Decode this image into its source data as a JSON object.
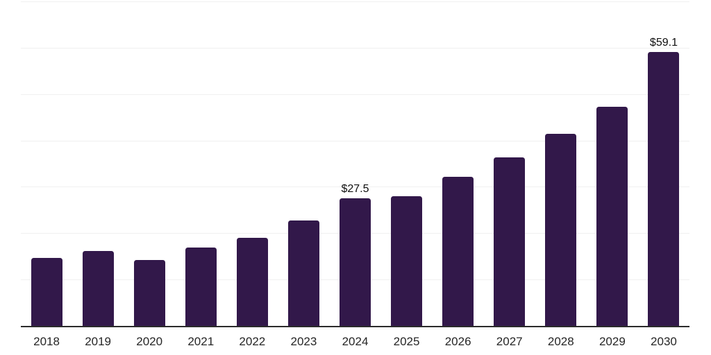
{
  "chart_data": {
    "type": "bar",
    "categories": [
      "2018",
      "2019",
      "2020",
      "2021",
      "2022",
      "2023",
      "2024",
      "2025",
      "2026",
      "2027",
      "2028",
      "2029",
      "2030"
    ],
    "values": [
      14.6,
      16.1,
      14.2,
      16.9,
      19.0,
      22.7,
      27.5,
      28.0,
      32.1,
      36.3,
      41.4,
      47.3,
      59.1
    ],
    "annotations": [
      {
        "category": "2024",
        "label": "$27.5"
      },
      {
        "category": "2030",
        "label": "$59.1"
      }
    ],
    "title": "",
    "xlabel": "",
    "ylabel": "",
    "ylim": [
      0,
      70
    ],
    "grid_step": 10,
    "grid": true,
    "legend": false
  },
  "colors": {
    "bar": "#32184a",
    "gridline": "#f0f0f0",
    "axis": "#2b2b2b",
    "tick_label": "#262626",
    "value_label": "#0f0f0f",
    "background": "#ffffff"
  }
}
